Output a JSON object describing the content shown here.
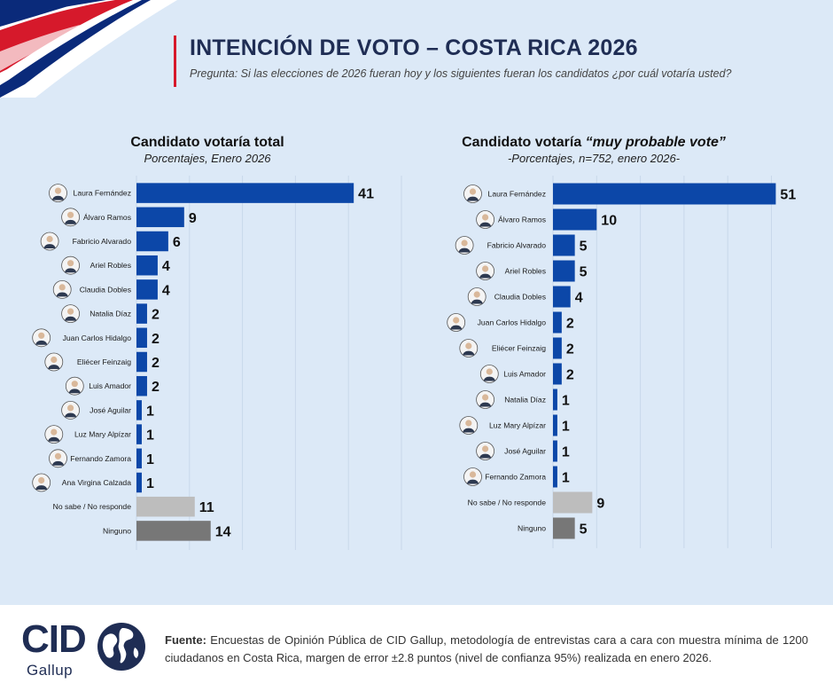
{
  "header": {
    "title": "INTENCIÓN DE VOTO – COSTA RICA 2026",
    "subtitle": "Pregunta: Si las elecciones de 2026 fueran hoy y los siguientes fueran los candidatos ¿por cuál votaría usted?"
  },
  "colors": {
    "candidate_bar": "#0c47a8",
    "no_sabe_bar": "#bdbdbd",
    "ninguno_bar": "#777777",
    "accent_red": "#d6192b",
    "brand_navy": "#1f2d54"
  },
  "chart_data": [
    {
      "type": "bar",
      "orientation": "horizontal",
      "title": "Candidato votaría total",
      "subtitle": "Porcentajes, Enero 2026",
      "categories": [
        "Laura Fernández",
        "Álvaro Ramos",
        "Fabricio Alvarado",
        "Ariel Robles",
        "Claudia Dobles",
        "Natalia Díaz",
        "Juan Carlos Hidalgo",
        "Eliécer Feinzaig",
        "Luis Amador",
        "José Aguilar",
        "Luz Mary Alpízar",
        "Fernando Zamora",
        "Ana Virgina Calzada",
        "No sabe / No responde",
        "Ninguno"
      ],
      "values": [
        41,
        9,
        6,
        4,
        4,
        2,
        2,
        2,
        2,
        1,
        1,
        1,
        1,
        11,
        14
      ],
      "grid": true
    },
    {
      "type": "bar",
      "orientation": "horizontal",
      "title": "Candidato votaría",
      "title_emphasis": "“muy probable vote”",
      "subtitle": "-Porcentajes, n=752, enero 2026-",
      "categories": [
        "Laura Fernández",
        "Álvaro Ramos",
        "Fabricio Alvarado",
        "Ariel Robles",
        "Claudia Dobles",
        "Juan Carlos Hidalgo",
        "Eliécer Feinzaig",
        "Luis Amador",
        "Natalia Díaz",
        "Luz Mary Alpízar",
        "José Aguilar",
        "Fernando Zamora",
        "No sabe / No responde",
        "Ninguno"
      ],
      "values": [
        51,
        10,
        5,
        5,
        4,
        2,
        2,
        2,
        1,
        1,
        1,
        1,
        9,
        5
      ],
      "grid": true
    }
  ],
  "footer": {
    "logo": "CID",
    "logo_sub": "Gallup",
    "source_label": "Fuente:",
    "source_text": "Encuestas de Opinión Pública de CID Gallup, metodología de entrevistas cara a cara con muestra mínima de 1200 ciudadanos en Costa Rica, margen de error ±2.8 puntos (nivel de confianza 95%) realizada en enero 2026."
  }
}
